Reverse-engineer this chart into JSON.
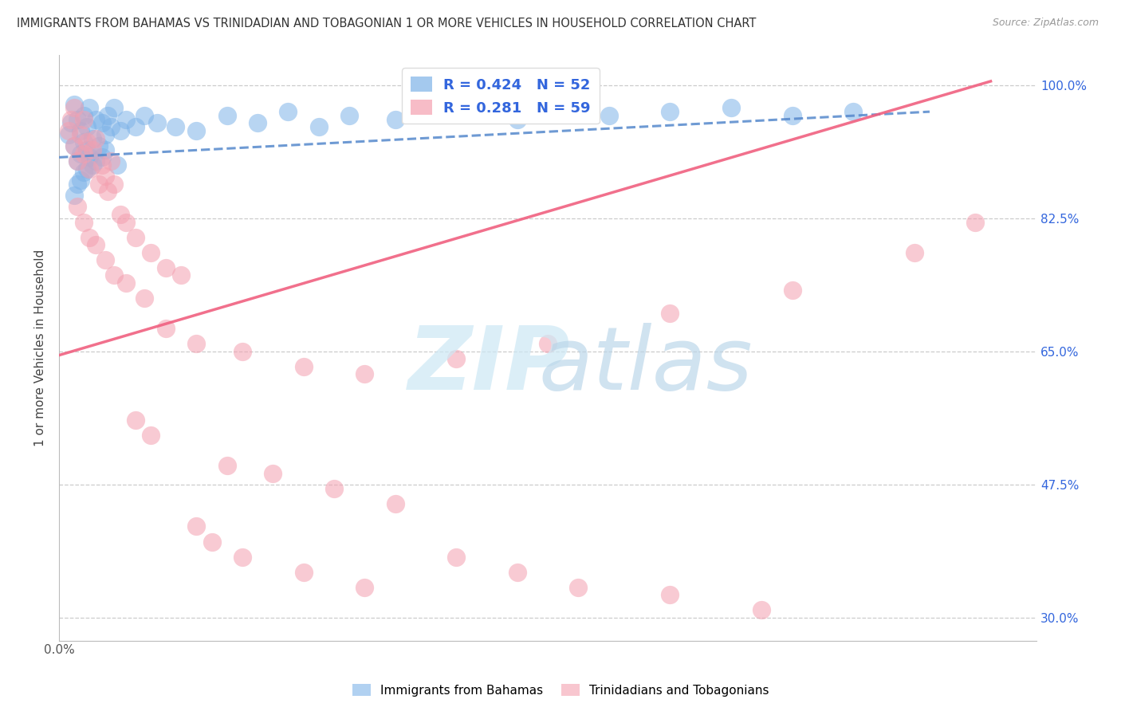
{
  "title": "IMMIGRANTS FROM BAHAMAS VS TRINIDADIAN AND TOBAGONIAN 1 OR MORE VEHICLES IN HOUSEHOLD CORRELATION CHART",
  "source": "Source: ZipAtlas.com",
  "ylabel": "1 or more Vehicles in Household",
  "xlim": [
    0.0,
    0.32
  ],
  "ylim": [
    0.27,
    1.04
  ],
  "yticks": [
    0.3,
    0.475,
    0.65,
    0.825,
    1.0
  ],
  "right_ytick_labels": [
    "30.0%",
    "47.5%",
    "65.0%",
    "82.5%",
    "100.0%"
  ],
  "blue_R": 0.424,
  "blue_N": 52,
  "pink_R": 0.281,
  "pink_N": 59,
  "blue_color": "#7EB3E8",
  "pink_color": "#F4A0B0",
  "blue_line_color": "#5588CC",
  "pink_line_color": "#F06080",
  "legend_label_blue": "Immigrants from Bahamas",
  "legend_label_pink": "Trinidadians and Tobagonians",
  "blue_scatter_x": [
    0.003,
    0.004,
    0.005,
    0.005,
    0.006,
    0.006,
    0.007,
    0.007,
    0.008,
    0.008,
    0.009,
    0.009,
    0.01,
    0.01,
    0.011,
    0.012,
    0.013,
    0.014,
    0.015,
    0.016,
    0.017,
    0.018,
    0.02,
    0.022,
    0.025,
    0.028,
    0.032,
    0.038,
    0.045,
    0.055,
    0.065,
    0.075,
    0.085,
    0.095,
    0.11,
    0.13,
    0.15,
    0.18,
    0.2,
    0.22,
    0.24,
    0.26,
    0.005,
    0.007,
    0.009,
    0.012,
    0.015,
    0.019,
    0.006,
    0.008,
    0.011,
    0.014
  ],
  "blue_scatter_y": [
    0.935,
    0.95,
    0.92,
    0.975,
    0.9,
    0.955,
    0.91,
    0.94,
    0.925,
    0.96,
    0.915,
    0.945,
    0.905,
    0.97,
    0.93,
    0.955,
    0.92,
    0.95,
    0.935,
    0.96,
    0.945,
    0.97,
    0.94,
    0.955,
    0.945,
    0.96,
    0.95,
    0.945,
    0.94,
    0.96,
    0.95,
    0.965,
    0.945,
    0.96,
    0.955,
    0.965,
    0.955,
    0.96,
    0.965,
    0.97,
    0.96,
    0.965,
    0.855,
    0.875,
    0.89,
    0.9,
    0.915,
    0.895,
    0.87,
    0.885,
    0.895,
    0.905
  ],
  "pink_scatter_x": [
    0.003,
    0.004,
    0.005,
    0.005,
    0.006,
    0.007,
    0.008,
    0.008,
    0.009,
    0.01,
    0.011,
    0.012,
    0.013,
    0.014,
    0.015,
    0.016,
    0.017,
    0.018,
    0.02,
    0.022,
    0.025,
    0.03,
    0.035,
    0.04,
    0.006,
    0.008,
    0.01,
    0.012,
    0.015,
    0.018,
    0.022,
    0.028,
    0.035,
    0.045,
    0.06,
    0.08,
    0.1,
    0.13,
    0.16,
    0.2,
    0.24,
    0.28,
    0.3,
    0.025,
    0.03,
    0.055,
    0.07,
    0.09,
    0.11,
    0.045,
    0.05,
    0.06,
    0.08,
    0.1,
    0.13,
    0.15,
    0.17,
    0.2,
    0.23
  ],
  "pink_scatter_y": [
    0.94,
    0.955,
    0.92,
    0.97,
    0.9,
    0.935,
    0.91,
    0.955,
    0.925,
    0.89,
    0.915,
    0.93,
    0.87,
    0.895,
    0.88,
    0.86,
    0.9,
    0.87,
    0.83,
    0.82,
    0.8,
    0.78,
    0.76,
    0.75,
    0.84,
    0.82,
    0.8,
    0.79,
    0.77,
    0.75,
    0.74,
    0.72,
    0.68,
    0.66,
    0.65,
    0.63,
    0.62,
    0.64,
    0.66,
    0.7,
    0.73,
    0.78,
    0.82,
    0.56,
    0.54,
    0.5,
    0.49,
    0.47,
    0.45,
    0.42,
    0.4,
    0.38,
    0.36,
    0.34,
    0.38,
    0.36,
    0.34,
    0.33,
    0.31
  ]
}
